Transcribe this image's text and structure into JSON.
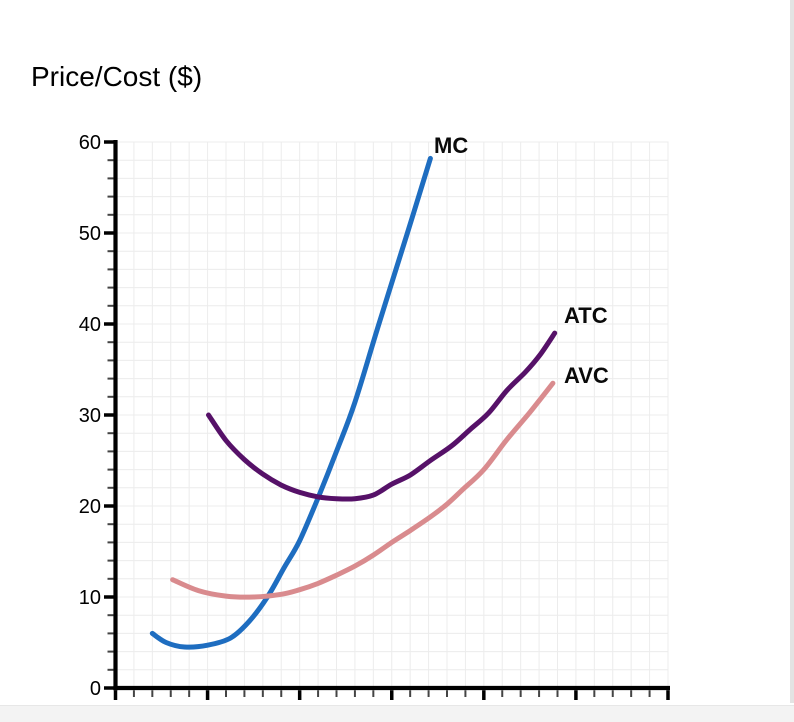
{
  "page": {
    "title": "Price/Cost ($)"
  },
  "frame": {
    "right_border_color": "#e3e3e3",
    "bottom_bar_color": "#f3f3f3"
  },
  "chart_data": {
    "type": "line",
    "title": "Price/Cost ($)",
    "xlabel": "",
    "ylabel": "Price/Cost ($)",
    "xlim": [
      0,
      60
    ],
    "ylim": [
      0,
      60
    ],
    "y_ticks": [
      0,
      10,
      20,
      30,
      40,
      50,
      60
    ],
    "y_minor_step": 2,
    "x_major_step": 10,
    "x_minor_step": 2,
    "x_tick_labels": [],
    "grid": true,
    "grid_color": "#ececec",
    "axis_color": "#000000",
    "legend_position": "inline-labels",
    "series": [
      {
        "name": "MC",
        "color": "#1e6dc0",
        "points": [
          [
            4,
            6
          ],
          [
            5.5,
            5
          ],
          [
            7.5,
            4.5
          ],
          [
            10,
            4.7
          ],
          [
            12.5,
            5.5
          ],
          [
            14.5,
            7.3
          ],
          [
            16.5,
            10
          ],
          [
            18.3,
            13.2
          ],
          [
            20,
            16.2
          ],
          [
            22,
            20.9
          ],
          [
            24,
            26
          ],
          [
            26,
            31.4
          ],
          [
            28.6,
            40
          ],
          [
            31.7,
            50
          ],
          [
            34.2,
            58.2
          ]
        ]
      },
      {
        "name": "ATC",
        "color": "#561168",
        "points": [
          [
            10.1,
            30
          ],
          [
            12,
            27.2
          ],
          [
            14,
            25.1
          ],
          [
            16,
            23.5
          ],
          [
            18,
            22.3
          ],
          [
            20,
            21.5
          ],
          [
            22,
            21
          ],
          [
            24,
            20.8
          ],
          [
            26,
            20.8
          ],
          [
            28,
            21.2
          ],
          [
            30,
            22.4
          ],
          [
            32,
            23.4
          ],
          [
            34.2,
            25
          ],
          [
            36.5,
            26.6
          ],
          [
            38.5,
            28.4
          ],
          [
            40.5,
            30.2
          ],
          [
            42.5,
            32.7
          ],
          [
            44.5,
            34.7
          ],
          [
            46.1,
            36.6
          ],
          [
            47.7,
            39
          ]
        ]
      },
      {
        "name": "AVC",
        "color": "#d98b8e",
        "points": [
          [
            6.2,
            11.9
          ],
          [
            9,
            10.7
          ],
          [
            12,
            10.1
          ],
          [
            15,
            10
          ],
          [
            18,
            10.3
          ],
          [
            20,
            10.8
          ],
          [
            22,
            11.5
          ],
          [
            24,
            12.4
          ],
          [
            26,
            13.4
          ],
          [
            28,
            14.6
          ],
          [
            30,
            16
          ],
          [
            32,
            17.3
          ],
          [
            34.2,
            18.8
          ],
          [
            36,
            20.2
          ],
          [
            37.7,
            21.8
          ],
          [
            40,
            24
          ],
          [
            42.5,
            27.3
          ],
          [
            45,
            30.3
          ],
          [
            47.5,
            33.5
          ]
        ]
      }
    ]
  }
}
